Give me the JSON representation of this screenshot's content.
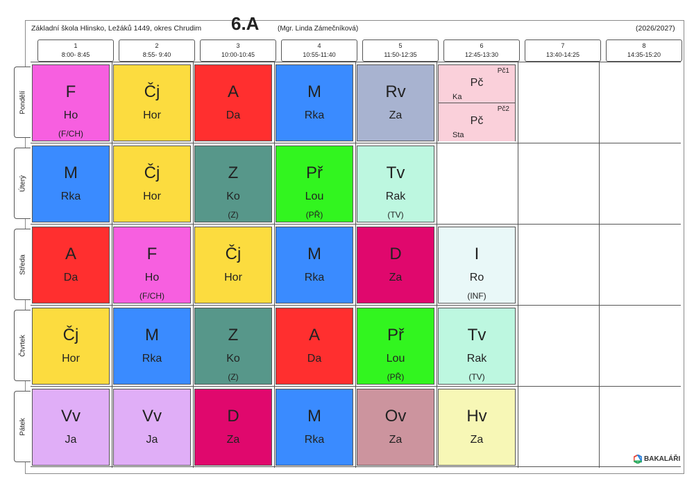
{
  "header": {
    "school": "Základní škola Hlinsko, Ležáků 1449, okres Chrudim",
    "class_name": "6.A",
    "teacher": "(Mgr. Linda Zámečníková)",
    "year": "(2026/2027)"
  },
  "periods": [
    {
      "num": "1",
      "time": "8:00- 8:45"
    },
    {
      "num": "2",
      "time": "8:55- 9:40"
    },
    {
      "num": "3",
      "time": "10:00-10:45"
    },
    {
      "num": "4",
      "time": "10:55-11:40"
    },
    {
      "num": "5",
      "time": "11:50-12:35"
    },
    {
      "num": "6",
      "time": "12:45-13:30"
    },
    {
      "num": "7",
      "time": "13:40-14:25"
    },
    {
      "num": "8",
      "time": "14:35-15:20"
    }
  ],
  "days": [
    {
      "name": "Pondělí",
      "lessons": [
        {
          "subject": "F",
          "teacher": "Ho",
          "note": "(F/CH)",
          "color": "#f75fe0"
        },
        {
          "subject": "Čj",
          "teacher": "Hor",
          "note": "",
          "color": "#fcdc3f"
        },
        {
          "subject": "A",
          "teacher": "Da",
          "note": "",
          "color": "#ff2f2f"
        },
        {
          "subject": "M",
          "teacher": "Rka",
          "note": "",
          "color": "#3a8bff"
        },
        {
          "subject": "Rv",
          "teacher": "Za",
          "note": "",
          "color": "#a8b3d0"
        },
        {
          "split": [
            {
              "subject": "Pč",
              "group": "Pč1",
              "teacher": "Ka",
              "color": "#fad0da"
            },
            {
              "subject": "Pč",
              "group": "Pč2",
              "teacher": "Sta",
              "color": "#fad0da"
            }
          ]
        },
        null,
        null
      ]
    },
    {
      "name": "Úterý",
      "lessons": [
        {
          "subject": "M",
          "teacher": "Rka",
          "note": "",
          "color": "#3a8bff"
        },
        {
          "subject": "Čj",
          "teacher": "Hor",
          "note": "",
          "color": "#fcdc3f"
        },
        {
          "subject": "Z",
          "teacher": "Ko",
          "note": "(Z)",
          "color": "#57978a"
        },
        {
          "subject": "Př",
          "teacher": "Lou",
          "note": "(PŘ)",
          "color": "#32f51f"
        },
        {
          "subject": "Tv",
          "teacher": "Rak",
          "note": "(TV)",
          "color": "#bdf7e0"
        },
        null,
        null,
        null
      ]
    },
    {
      "name": "Středa",
      "lessons": [
        {
          "subject": "A",
          "teacher": "Da",
          "note": "",
          "color": "#ff2f2f"
        },
        {
          "subject": "F",
          "teacher": "Ho",
          "note": "(F/CH)",
          "color": "#f75fe0"
        },
        {
          "subject": "Čj",
          "teacher": "Hor",
          "note": "",
          "color": "#fcdc3f"
        },
        {
          "subject": "M",
          "teacher": "Rka",
          "note": "",
          "color": "#3a8bff"
        },
        {
          "subject": "D",
          "teacher": "Za",
          "note": "",
          "color": "#e0086d"
        },
        {
          "subject": "I",
          "teacher": "Ro",
          "note": "(INF)",
          "color": "#e9f8f8"
        },
        null,
        null
      ]
    },
    {
      "name": "Čtvrtek",
      "lessons": [
        {
          "subject": "Čj",
          "teacher": "Hor",
          "note": "",
          "color": "#fcdc3f"
        },
        {
          "subject": "M",
          "teacher": "Rka",
          "note": "",
          "color": "#3a8bff"
        },
        {
          "subject": "Z",
          "teacher": "Ko",
          "note": "(Z)",
          "color": "#57978a"
        },
        {
          "subject": "A",
          "teacher": "Da",
          "note": "",
          "color": "#ff2f2f"
        },
        {
          "subject": "Př",
          "teacher": "Lou",
          "note": "(PŘ)",
          "color": "#32f51f"
        },
        {
          "subject": "Tv",
          "teacher": "Rak",
          "note": "(TV)",
          "color": "#bdf7e0"
        },
        null,
        null
      ]
    },
    {
      "name": "Pátek",
      "lessons": [
        {
          "subject": "Vv",
          "teacher": "Ja",
          "note": "",
          "color": "#e0aef7"
        },
        {
          "subject": "Vv",
          "teacher": "Ja",
          "note": "",
          "color": "#e0aef7"
        },
        {
          "subject": "D",
          "teacher": "Za",
          "note": "",
          "color": "#e0086d"
        },
        {
          "subject": "M",
          "teacher": "Rka",
          "note": "",
          "color": "#3a8bff"
        },
        {
          "subject": "Ov",
          "teacher": "Za",
          "note": "",
          "color": "#cc949e"
        },
        {
          "subject": "Hv",
          "teacher": "Za",
          "note": "",
          "color": "#f7f7b6"
        },
        null,
        null
      ]
    }
  ],
  "footer": {
    "logo_text": "BAKALÁŘI",
    "logo_icon": "bakalari-hexagon-icon"
  }
}
